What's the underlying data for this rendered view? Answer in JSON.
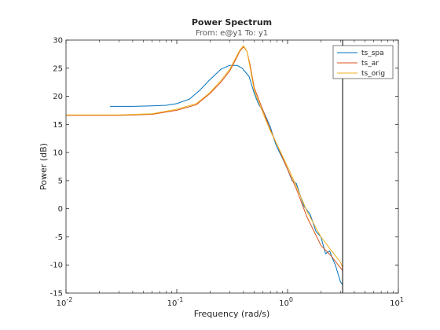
{
  "chart_data": {
    "type": "line",
    "title": "Power Spectrum",
    "subtitle": "From: e@y1  To: y1",
    "xlabel": "Frequency  (rad/s)",
    "ylabel": "Power (dB)",
    "xscale": "log",
    "xlim": [
      0.01,
      10
    ],
    "ylim": [
      -15,
      30
    ],
    "x_tick_labels": [
      {
        "base": "10",
        "exp": "-2"
      },
      {
        "base": "10",
        "exp": "-1"
      },
      {
        "base": "10",
        "exp": "0"
      },
      {
        "base": "10",
        "exp": "1"
      }
    ],
    "y_ticks": [
      "-15",
      "-10",
      "-5",
      "0",
      "5",
      "10",
      "15",
      "20",
      "25",
      "30"
    ],
    "grid": false,
    "legend_position": "top-right",
    "nyquist_line_x": 3.14,
    "series": [
      {
        "name": "ts_spa",
        "color": "#0072BD",
        "x": [
          0.025,
          0.04,
          0.06,
          0.08,
          0.1,
          0.13,
          0.16,
          0.2,
          0.25,
          0.3,
          0.35,
          0.39,
          0.45,
          0.5,
          0.55,
          0.6,
          0.65,
          0.7,
          0.75,
          0.8,
          0.9,
          1.0,
          1.1,
          1.2,
          1.4,
          1.6,
          1.8,
          2.0,
          2.2,
          2.4,
          2.5,
          2.7,
          2.8,
          3.0,
          3.14
        ],
        "y": [
          18.2,
          18.2,
          18.3,
          18.4,
          18.7,
          19.5,
          21.0,
          23.0,
          24.8,
          25.5,
          25.5,
          25.0,
          23.5,
          20.5,
          18.5,
          17.5,
          16.0,
          14.5,
          12.5,
          11.0,
          9.0,
          7.0,
          5.0,
          4.5,
          0.5,
          -1.0,
          -4.0,
          -5.0,
          -8.0,
          -7.5,
          -8.5,
          -10.0,
          -11.0,
          -13.0,
          -13.5
        ]
      },
      {
        "name": "ts_ar",
        "color": "#D95319",
        "x": [
          0.01,
          0.03,
          0.06,
          0.1,
          0.15,
          0.2,
          0.25,
          0.3,
          0.34,
          0.37,
          0.4,
          0.43,
          0.46,
          0.5,
          0.6,
          0.7,
          0.8,
          1.0,
          1.2,
          1.5,
          2.0,
          2.5,
          3.0,
          3.14
        ],
        "y": [
          16.6,
          16.6,
          16.8,
          17.5,
          18.5,
          20.5,
          22.5,
          24.5,
          26.5,
          28.0,
          28.8,
          28.0,
          25.5,
          21.5,
          17.5,
          14.0,
          11.5,
          7.0,
          3.5,
          -1.5,
          -6.5,
          -8.5,
          -10.5,
          -11.0
        ]
      },
      {
        "name": "ts_orig",
        "color": "#EDB120",
        "x": [
          0.01,
          0.03,
          0.06,
          0.1,
          0.15,
          0.2,
          0.25,
          0.3,
          0.34,
          0.37,
          0.4,
          0.43,
          0.46,
          0.5,
          0.6,
          0.7,
          0.8,
          1.0,
          1.2,
          1.5,
          2.0,
          2.5,
          3.0,
          3.14
        ],
        "y": [
          16.7,
          16.7,
          16.9,
          17.7,
          18.7,
          20.7,
          22.8,
          24.8,
          26.8,
          28.2,
          29.0,
          28.0,
          25.0,
          21.0,
          17.0,
          13.8,
          11.5,
          7.5,
          4.0,
          -0.5,
          -5.0,
          -7.5,
          -9.5,
          -10.5
        ]
      }
    ]
  }
}
